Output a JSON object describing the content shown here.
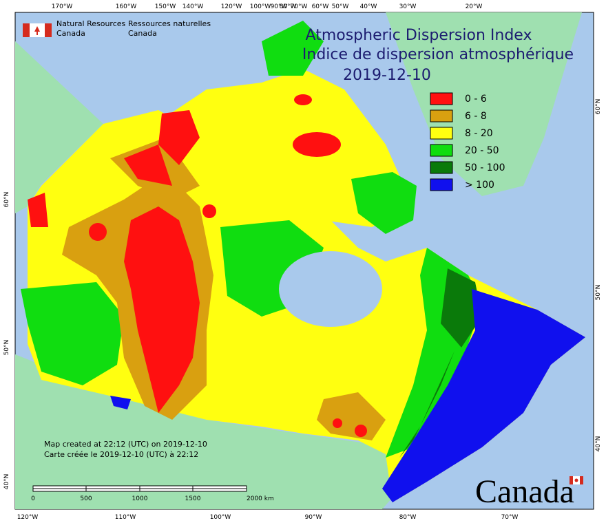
{
  "agency": {
    "en": [
      "Natural Resources",
      "Canada"
    ],
    "fr": [
      "Ressources naturelles",
      "Canada"
    ]
  },
  "title": {
    "en": "Atmospheric Dispersion Index",
    "fr": "Indice de dispersion atmosphérique",
    "date": "2019-12-10"
  },
  "legend": {
    "items": [
      {
        "label": "0 - 6",
        "color": "#ff1010"
      },
      {
        "label": "6 - 8",
        "color": "#d9a010"
      },
      {
        "label": "8 - 20",
        "color": "#ffff10"
      },
      {
        "label": "20 - 50",
        "color": "#10dd10"
      },
      {
        "label": "50 - 100",
        "color": "#0a7a0a"
      },
      {
        "label": "> 100",
        "color": "#1010ee"
      }
    ]
  },
  "graticule": {
    "top": [
      "170°W",
      "160°W",
      "150°W",
      "140°W",
      "120°W",
      "100°W",
      "90°W",
      "80°W",
      "70°W",
      "60°W",
      "50°W",
      "40°W",
      "30°W",
      "20°W"
    ],
    "bottom": [
      "120°W",
      "110°W",
      "100°W",
      "90°W",
      "80°W",
      "70°W"
    ],
    "left": [
      "60°N",
      "50°N",
      "40°N"
    ],
    "right": [
      "60°N",
      "50°N",
      "40°N"
    ]
  },
  "credits": [
    "Map created at 22:12 (UTC) on 2019-12-10",
    "Carte créée le 2019-12-10 (UTC) à 22:12"
  ],
  "scale_bar": {
    "labels": [
      "0",
      "500",
      "1000",
      "1500",
      "2000  km"
    ]
  },
  "wordmark": "Canada"
}
